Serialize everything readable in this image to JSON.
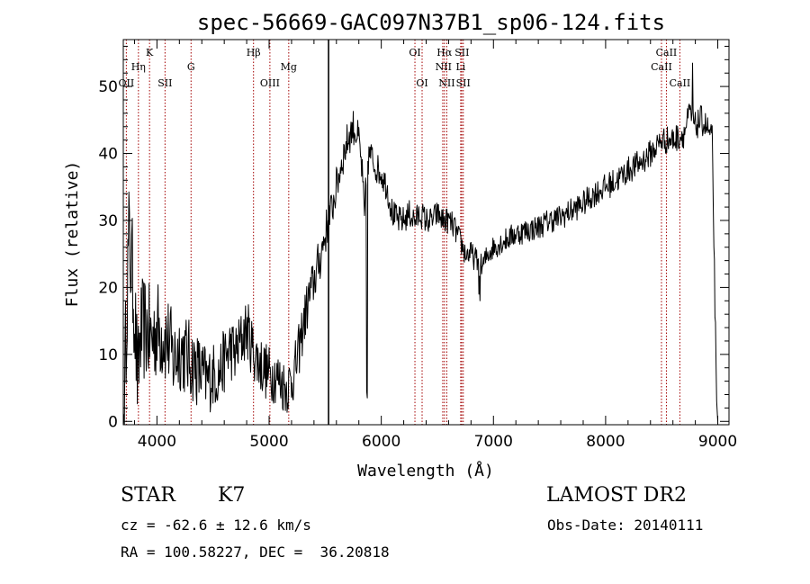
{
  "title": "spec-56669-GAC097N37B1_sp06-124.fits",
  "info": {
    "class_label": "STAR",
    "subclass": "K7",
    "survey": "LAMOST DR2",
    "cz": "cz = -62.6 ± 12.6 km/s",
    "obs_date": "Obs-Date: 20140111",
    "radec": "RA = 100.58227, DEC =  36.20818"
  },
  "colors": {
    "spectrum": "#000000",
    "line_markers": "#a30000",
    "axes": "#000000",
    "background": "#ffffff"
  },
  "chart_data": {
    "type": "line",
    "title": "spec-56669-GAC097N37B1_sp06-124.fits",
    "xlabel": "Wavelength (Å)",
    "ylabel": "Flux (relative)",
    "xlim": [
      3700,
      9100
    ],
    "ylim": [
      -0.5,
      57
    ],
    "xticks": [
      4000,
      5000,
      6000,
      7000,
      8000,
      9000
    ],
    "yticks": [
      0,
      10,
      20,
      30,
      40,
      50
    ],
    "grid": false,
    "legend": "none",
    "spectrum_anchors": [
      [
        3700,
        0
      ],
      [
        3710,
        2
      ],
      [
        3730,
        18
      ],
      [
        3750,
        27
      ],
      [
        3780,
        22
      ],
      [
        3800,
        17
      ],
      [
        3830,
        5
      ],
      [
        3850,
        13
      ],
      [
        3900,
        14
      ],
      [
        3950,
        12
      ],
      [
        4000,
        14
      ],
      [
        4050,
        13
      ],
      [
        4100,
        12
      ],
      [
        4150,
        9
      ],
      [
        4200,
        11
      ],
      [
        4250,
        10
      ],
      [
        4300,
        9
      ],
      [
        4350,
        8
      ],
      [
        4400,
        7
      ],
      [
        4450,
        6
      ],
      [
        4500,
        7
      ],
      [
        4550,
        7
      ],
      [
        4600,
        9
      ],
      [
        4650,
        11
      ],
      [
        4700,
        10
      ],
      [
        4750,
        12
      ],
      [
        4800,
        14
      ],
      [
        4850,
        11
      ],
      [
        4900,
        9
      ],
      [
        4950,
        8
      ],
      [
        5000,
        7
      ],
      [
        5050,
        7
      ],
      [
        5100,
        6
      ],
      [
        5150,
        5
      ],
      [
        5200,
        6
      ],
      [
        5250,
        9
      ],
      [
        5300,
        14
      ],
      [
        5350,
        18
      ],
      [
        5400,
        21
      ],
      [
        5450,
        24
      ],
      [
        5500,
        28
      ],
      [
        5550,
        31
      ],
      [
        5600,
        35
      ],
      [
        5650,
        39
      ],
      [
        5700,
        42
      ],
      [
        5750,
        44
      ],
      [
        5800,
        42
      ],
      [
        5830,
        37
      ],
      [
        5850,
        30
      ],
      [
        5870,
        38
      ],
      [
        5900,
        40
      ],
      [
        5950,
        38
      ],
      [
        6000,
        37
      ],
      [
        6050,
        35
      ],
      [
        6100,
        31
      ],
      [
        6150,
        30
      ],
      [
        6200,
        30
      ],
      [
        6250,
        31
      ],
      [
        6300,
        30
      ],
      [
        6350,
        31
      ],
      [
        6400,
        30
      ],
      [
        6450,
        30
      ],
      [
        6500,
        31
      ],
      [
        6550,
        30
      ],
      [
        6600,
        30
      ],
      [
        6650,
        29
      ],
      [
        6700,
        27
      ],
      [
        6750,
        25
      ],
      [
        6800,
        25
      ],
      [
        6850,
        24
      ],
      [
        6900,
        23
      ],
      [
        6950,
        25
      ],
      [
        7000,
        26
      ],
      [
        7100,
        27
      ],
      [
        7200,
        28
      ],
      [
        7300,
        28.5
      ],
      [
        7400,
        29
      ],
      [
        7500,
        30
      ],
      [
        7600,
        30.5
      ],
      [
        7700,
        31.5
      ],
      [
        7800,
        32.5
      ],
      [
        7900,
        34
      ],
      [
        8000,
        35
      ],
      [
        8100,
        36
      ],
      [
        8200,
        37.5
      ],
      [
        8300,
        38.5
      ],
      [
        8400,
        40
      ],
      [
        8500,
        42
      ],
      [
        8600,
        42
      ],
      [
        8700,
        43
      ],
      [
        8750,
        46
      ],
      [
        8800,
        44
      ],
      [
        8850,
        45
      ],
      [
        8900,
        44
      ],
      [
        8950,
        42
      ],
      [
        8990,
        3
      ],
      [
        9000,
        0
      ]
    ],
    "spectrum_features": [
      [
        5870,
        4.5
      ],
      [
        5877,
        3.5
      ],
      [
        6870,
        19
      ],
      [
        6880,
        18
      ],
      [
        8775,
        53.5
      ]
    ],
    "noise_amplitude_by_wavelength": [
      [
        3700,
        9
      ],
      [
        4500,
        5
      ],
      [
        5300,
        4
      ],
      [
        5600,
        3
      ],
      [
        6000,
        2.2
      ],
      [
        7000,
        1.8
      ],
      [
        9000,
        2.2
      ]
    ],
    "spectrum_step": 5,
    "artifact_line": {
      "x": 5530,
      "ylim": [
        -0.5,
        57
      ]
    },
    "line_labels": [
      {
        "text": "K",
        "x": 3934,
        "row": 1
      },
      {
        "text": "Hη",
        "x": 3835,
        "row": 2
      },
      {
        "text": "G",
        "x": 4304,
        "row": 2
      },
      {
        "text": "OII",
        "x": 3727,
        "row": 3
      },
      {
        "text": "SII",
        "x": 4072,
        "row": 3
      },
      {
        "text": "Hβ",
        "x": 4861,
        "row": 1
      },
      {
        "text": "Mg",
        "x": 5175,
        "row": 2
      },
      {
        "text": "OIII",
        "x": 5007,
        "row": 3
      },
      {
        "text": "OI",
        "x": 6300,
        "row": 1
      },
      {
        "text": "OI",
        "x": 6364,
        "row": 3
      },
      {
        "text": "Hα",
        "x": 6563,
        "row": 1
      },
      {
        "text": "SII",
        "x": 6720,
        "row": 1
      },
      {
        "text": "NII",
        "x": 6555,
        "row": 2
      },
      {
        "text": "Li",
        "x": 6708,
        "row": 2
      },
      {
        "text": "NII",
        "x": 6584,
        "row": 3
      },
      {
        "text": "SII",
        "x": 6731,
        "row": 3
      },
      {
        "text": "CaII",
        "x": 8542,
        "row": 1
      },
      {
        "text": "CaII",
        "x": 8498,
        "row": 2
      },
      {
        "text": "CaII",
        "x": 8662,
        "row": 3
      }
    ],
    "marker_lines": [
      3727,
      3835,
      3934,
      4072,
      4304,
      4861,
      5007,
      5175,
      6300,
      6364,
      6548,
      6563,
      6584,
      6708,
      6717,
      6731,
      8498,
      8542,
      8662
    ]
  }
}
